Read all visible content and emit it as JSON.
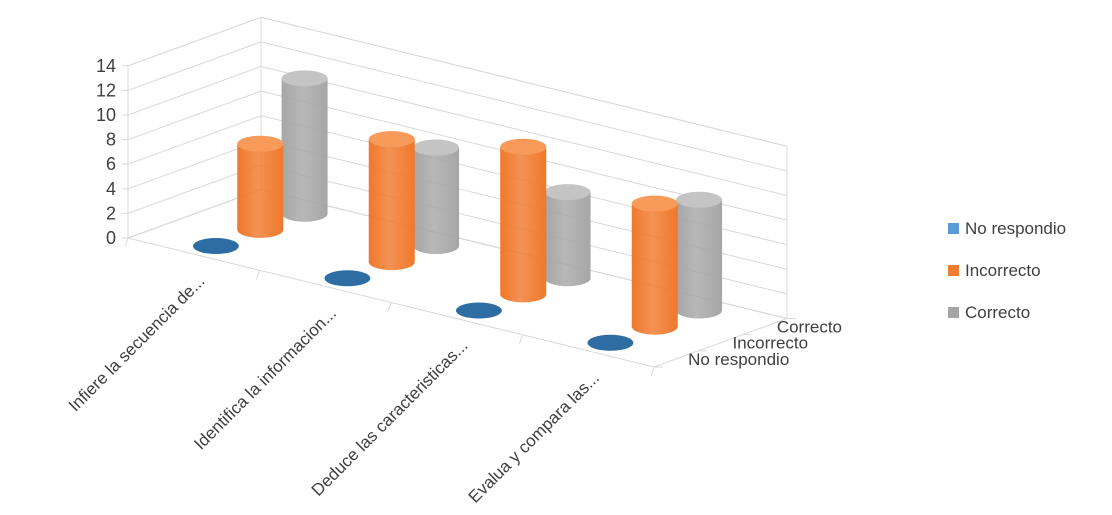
{
  "chart_data": {
    "type": "bar",
    "style": "3d-cylinder",
    "categories": [
      "Infiere la secuencia de...",
      "Identifica la informacion...",
      "Deduce las caracteristicas...",
      "Evalua y compara las..."
    ],
    "series": [
      {
        "name": "No respondio",
        "color": "#4f81bd",
        "values": [
          0,
          0,
          0,
          0
        ]
      },
      {
        "name": "Incorrecto",
        "color": "#f0782a",
        "values": [
          7,
          10,
          12,
          10
        ]
      },
      {
        "name": "Correcto",
        "color": "#a6a6a6",
        "values": [
          11,
          8,
          7,
          9
        ]
      }
    ],
    "yticks": [
      "0",
      "2",
      "4",
      "6",
      "8",
      "10",
      "12",
      "14"
    ],
    "ylim": [
      0,
      14
    ],
    "depth_labels": [
      "No respondio",
      "Incorrecto",
      "Correcto"
    ],
    "legend_position": "right",
    "grid": true
  }
}
